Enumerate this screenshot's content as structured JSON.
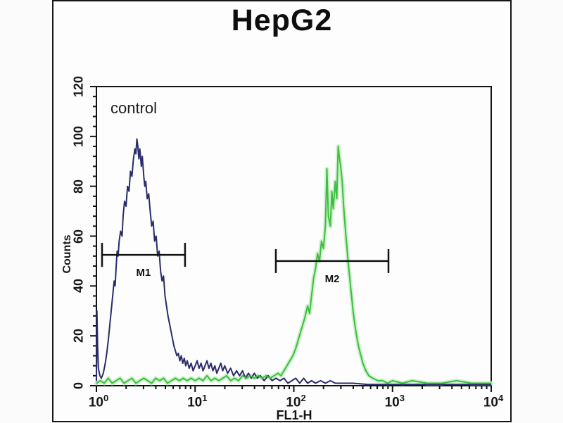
{
  "figure": {
    "title": "HepG2",
    "annotation": "control"
  },
  "chart_data": {
    "type": "line",
    "subtype": "flow-cytometry-histogram-overlay",
    "title": "HepG2",
    "xlabel": "FL1-H",
    "ylabel": "Counts",
    "annotation": "control",
    "grid": false,
    "legend": false,
    "x_axis": {
      "scale": "log10",
      "tick_base": "10",
      "min_exponent": 0,
      "max_exponent": 4,
      "tick_exponents": [
        0,
        1,
        2,
        3,
        4
      ],
      "minor_tick_mantissas": [
        2,
        3,
        4,
        5,
        6,
        7,
        8,
        9
      ]
    },
    "y_axis": {
      "min": 0,
      "max": 120,
      "major_ticks": [
        0,
        20,
        40,
        60,
        80,
        100,
        120
      ],
      "minor_step": 4
    },
    "colors": {
      "blue_curve": "#2b2b6b",
      "green_curve": "#3fbe3f",
      "green_glow": "#c6efc6",
      "axis": "#121212",
      "marker": "#111111"
    },
    "markers": [
      {
        "label": "M1",
        "from_log10": 0.057,
        "to_log10": 0.898,
        "count_level": 52.5
      },
      {
        "label": "M2",
        "from_log10": 1.818,
        "to_log10": 2.959,
        "count_level": 50
      }
    ],
    "series": [
      {
        "name": "control",
        "color_name": "blue",
        "color": "#2b2b6b",
        "points_log10x_count": [
          [
            0.0,
            2
          ],
          [
            0.005,
            30
          ],
          [
            0.012,
            16
          ],
          [
            0.02,
            7
          ],
          [
            0.035,
            4
          ],
          [
            0.05,
            3
          ],
          [
            0.07,
            5
          ],
          [
            0.09,
            9
          ],
          [
            0.105,
            13
          ],
          [
            0.12,
            18
          ],
          [
            0.135,
            24
          ],
          [
            0.15,
            30
          ],
          [
            0.165,
            36
          ],
          [
            0.18,
            42
          ],
          [
            0.19,
            40
          ],
          [
            0.2,
            48
          ],
          [
            0.21,
            54
          ],
          [
            0.22,
            52
          ],
          [
            0.23,
            58
          ],
          [
            0.245,
            62
          ],
          [
            0.26,
            60
          ],
          [
            0.27,
            68
          ],
          [
            0.285,
            74
          ],
          [
            0.3,
            72
          ],
          [
            0.315,
            80
          ],
          [
            0.33,
            78
          ],
          [
            0.345,
            86
          ],
          [
            0.36,
            84
          ],
          [
            0.375,
            91
          ],
          [
            0.39,
            95
          ],
          [
            0.4,
            93
          ],
          [
            0.41,
            99
          ],
          [
            0.42,
            96
          ],
          [
            0.43,
            91
          ],
          [
            0.44,
            95
          ],
          [
            0.455,
            88
          ],
          [
            0.465,
            92
          ],
          [
            0.48,
            84
          ],
          [
            0.49,
            80
          ],
          [
            0.5,
            82
          ],
          [
            0.515,
            75
          ],
          [
            0.53,
            77
          ],
          [
            0.545,
            70
          ],
          [
            0.56,
            64
          ],
          [
            0.575,
            66
          ],
          [
            0.59,
            58
          ],
          [
            0.605,
            60
          ],
          [
            0.62,
            52
          ],
          [
            0.635,
            54
          ],
          [
            0.65,
            46
          ],
          [
            0.665,
            42
          ],
          [
            0.68,
            44
          ],
          [
            0.695,
            36
          ],
          [
            0.71,
            32
          ],
          [
            0.725,
            28
          ],
          [
            0.74,
            25
          ],
          [
            0.755,
            22
          ],
          [
            0.77,
            19
          ],
          [
            0.785,
            16
          ],
          [
            0.8,
            14
          ],
          [
            0.815,
            12
          ],
          [
            0.83,
            13
          ],
          [
            0.845,
            10
          ],
          [
            0.86,
            12
          ],
          [
            0.875,
            9
          ],
          [
            0.89,
            11
          ],
          [
            0.905,
            8
          ],
          [
            0.92,
            10
          ],
          [
            0.94,
            7
          ],
          [
            0.96,
            9
          ],
          [
            0.98,
            6
          ],
          [
            1.0,
            8
          ],
          [
            1.02,
            10
          ],
          [
            1.04,
            7
          ],
          [
            1.06,
            9
          ],
          [
            1.08,
            6
          ],
          [
            1.1,
            8
          ],
          [
            1.12,
            10
          ],
          [
            1.14,
            7
          ],
          [
            1.16,
            9
          ],
          [
            1.18,
            6
          ],
          [
            1.2,
            8
          ],
          [
            1.22,
            5
          ],
          [
            1.24,
            7
          ],
          [
            1.26,
            9
          ],
          [
            1.28,
            6
          ],
          [
            1.3,
            8
          ],
          [
            1.33,
            5
          ],
          [
            1.36,
            7
          ],
          [
            1.39,
            4
          ],
          [
            1.42,
            6
          ],
          [
            1.45,
            4
          ],
          [
            1.48,
            6
          ],
          [
            1.51,
            3
          ],
          [
            1.54,
            5
          ],
          [
            1.57,
            3
          ],
          [
            1.6,
            5
          ],
          [
            1.63,
            3
          ],
          [
            1.66,
            4
          ],
          [
            1.7,
            2
          ],
          [
            1.74,
            4
          ],
          [
            1.78,
            2
          ],
          [
            1.82,
            3
          ],
          [
            1.86,
            2
          ],
          [
            1.9,
            3
          ],
          [
            1.94,
            1
          ],
          [
            1.98,
            2
          ],
          [
            2.02,
            3
          ],
          [
            2.06,
            1
          ],
          [
            2.1,
            3
          ],
          [
            2.14,
            1
          ],
          [
            2.18,
            2
          ],
          [
            2.22,
            1
          ],
          [
            2.27,
            2
          ],
          [
            2.32,
            1
          ],
          [
            2.37,
            2
          ],
          [
            2.42,
            1
          ],
          [
            2.5,
            1
          ],
          [
            2.6,
            1
          ],
          [
            2.75,
            0.5
          ],
          [
            3.0,
            0.5
          ],
          [
            3.5,
            0.5
          ],
          [
            4.0,
            0.5
          ]
        ]
      },
      {
        "name": "",
        "color_name": "green",
        "color": "#3fbe3f",
        "points_log10x_count": [
          [
            0.0,
            1
          ],
          [
            0.04,
            2
          ],
          [
            0.08,
            1
          ],
          [
            0.12,
            3
          ],
          [
            0.16,
            1
          ],
          [
            0.2,
            2
          ],
          [
            0.24,
            3
          ],
          [
            0.28,
            1
          ],
          [
            0.32,
            2
          ],
          [
            0.36,
            3
          ],
          [
            0.4,
            1
          ],
          [
            0.44,
            2
          ],
          [
            0.48,
            3
          ],
          [
            0.52,
            2
          ],
          [
            0.56,
            1
          ],
          [
            0.6,
            3
          ],
          [
            0.64,
            2
          ],
          [
            0.68,
            3
          ],
          [
            0.72,
            1
          ],
          [
            0.76,
            2
          ],
          [
            0.8,
            3
          ],
          [
            0.84,
            2
          ],
          [
            0.88,
            3
          ],
          [
            0.92,
            2
          ],
          [
            0.96,
            3
          ],
          [
            1.0,
            2
          ],
          [
            1.04,
            3
          ],
          [
            1.08,
            2
          ],
          [
            1.12,
            4
          ],
          [
            1.16,
            2
          ],
          [
            1.2,
            3
          ],
          [
            1.24,
            2
          ],
          [
            1.28,
            3
          ],
          [
            1.32,
            4
          ],
          [
            1.36,
            2
          ],
          [
            1.4,
            3
          ],
          [
            1.44,
            2
          ],
          [
            1.48,
            4
          ],
          [
            1.52,
            3
          ],
          [
            1.56,
            4
          ],
          [
            1.6,
            3
          ],
          [
            1.64,
            4
          ],
          [
            1.68,
            3
          ],
          [
            1.72,
            4
          ],
          [
            1.76,
            3
          ],
          [
            1.8,
            4
          ],
          [
            1.84,
            5
          ],
          [
            1.87,
            4
          ],
          [
            1.9,
            6
          ],
          [
            1.93,
            8
          ],
          [
            1.96,
            10
          ],
          [
            1.99,
            12
          ],
          [
            2.02,
            15
          ],
          [
            2.05,
            19
          ],
          [
            2.08,
            23
          ],
          [
            2.11,
            27
          ],
          [
            2.14,
            32
          ],
          [
            2.16,
            29
          ],
          [
            2.18,
            36
          ],
          [
            2.2,
            43
          ],
          [
            2.22,
            47
          ],
          [
            2.24,
            53
          ],
          [
            2.26,
            50
          ],
          [
            2.28,
            58
          ],
          [
            2.3,
            55
          ],
          [
            2.32,
            64
          ],
          [
            2.335,
            87
          ],
          [
            2.35,
            68
          ],
          [
            2.37,
            64
          ],
          [
            2.385,
            78
          ],
          [
            2.4,
            71
          ],
          [
            2.42,
            82
          ],
          [
            2.435,
            75
          ],
          [
            2.45,
            96
          ],
          [
            2.46,
            92
          ],
          [
            2.475,
            88
          ],
          [
            2.49,
            82
          ],
          [
            2.505,
            72
          ],
          [
            2.52,
            64
          ],
          [
            2.535,
            57
          ],
          [
            2.55,
            50
          ],
          [
            2.565,
            44
          ],
          [
            2.58,
            38
          ],
          [
            2.6,
            30
          ],
          [
            2.62,
            24
          ],
          [
            2.64,
            19
          ],
          [
            2.66,
            15
          ],
          [
            2.68,
            12
          ],
          [
            2.7,
            9
          ],
          [
            2.73,
            6
          ],
          [
            2.76,
            4
          ],
          [
            2.8,
            3
          ],
          [
            2.85,
            2
          ],
          [
            2.9,
            2
          ],
          [
            2.95,
            1
          ],
          [
            3.0,
            2
          ],
          [
            3.1,
            1
          ],
          [
            3.2,
            2
          ],
          [
            3.35,
            1
          ],
          [
            3.5,
            1
          ],
          [
            3.65,
            2
          ],
          [
            3.8,
            1
          ],
          [
            4.0,
            1
          ]
        ]
      }
    ]
  }
}
